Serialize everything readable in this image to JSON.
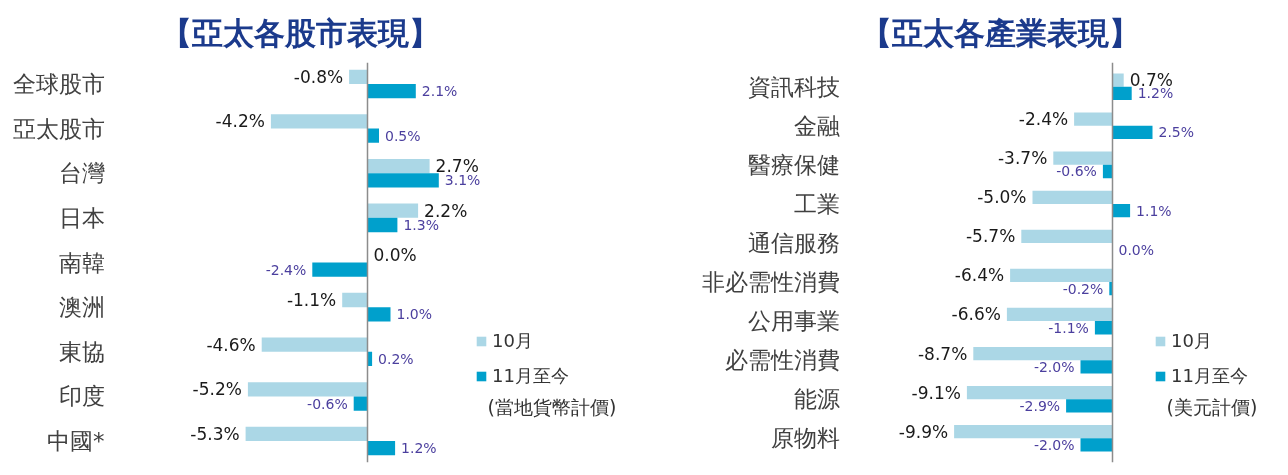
{
  "chart_data": [
    {
      "type": "bar",
      "orientation": "horizontal",
      "title": "【亞太各股市表現】",
      "categories": [
        "全球股市",
        "亞太股市",
        "台灣",
        "日本",
        "南韓",
        "澳洲",
        "東協",
        "印度",
        "中國*"
      ],
      "series": [
        {
          "name": "10月",
          "color": "#abd7e6",
          "values": [
            -0.8,
            -4.2,
            2.7,
            2.2,
            0.0,
            -1.1,
            -4.6,
            -5.2,
            -5.3
          ],
          "value_labels": [
            "-0.8%",
            "-4.2%",
            "2.7%",
            "2.2%",
            "0.0%",
            "-1.1%",
            "-4.6%",
            "-5.2%",
            "-5.3%"
          ]
        },
        {
          "name": "11月至今",
          "color": "#00a0cc",
          "values": [
            2.1,
            0.5,
            3.1,
            1.3,
            -2.4,
            1.0,
            0.2,
            -0.6,
            1.2
          ],
          "value_labels": [
            "2.1%",
            "0.5%",
            "3.1%",
            "1.3%",
            "-2.4%",
            "1.0%",
            "0.2%",
            "-0.6%",
            "1.2%"
          ]
        }
      ],
      "tick_labels": "y",
      "legend": "bottom right",
      "annotations": [
        "(當地貨幣計價)"
      ]
    },
    {
      "type": "bar",
      "orientation": "horizontal",
      "title": "【亞太各產業表現】",
      "categories": [
        "資訊科技",
        "金融",
        "醫療保健",
        "工業",
        "通信服務",
        "非必需性消費",
        "公用事業",
        "必需性消費",
        "能源",
        "原物料"
      ],
      "series": [
        {
          "name": "10月",
          "color": "#abd7e6",
          "values": [
            0.7,
            -2.4,
            -3.7,
            -5.0,
            -5.7,
            -6.4,
            -6.6,
            -8.7,
            -9.1,
            -9.9
          ],
          "value_labels": [
            "0.7%",
            "-2.4%",
            "-3.7%",
            "-5.0%",
            "-5.7%",
            "-6.4%",
            "-6.6%",
            "-8.7%",
            "-9.1%",
            "-9.9%"
          ]
        },
        {
          "name": "11月至今",
          "color": "#00a0cc",
          "values": [
            1.2,
            2.5,
            -0.6,
            1.1,
            0.0,
            -0.2,
            -1.1,
            -2.0,
            -2.9,
            -2.0
          ],
          "value_labels": [
            "1.2%",
            "2.5%",
            "-0.6%",
            "1.1%",
            "0.0%",
            "-0.2%",
            "-1.1%",
            "-2.0%",
            "-2.9%",
            "-2.0%"
          ]
        }
      ],
      "tick_labels": "y",
      "legend": "bottom right",
      "annotations": [
        "(美元計價)"
      ]
    }
  ]
}
